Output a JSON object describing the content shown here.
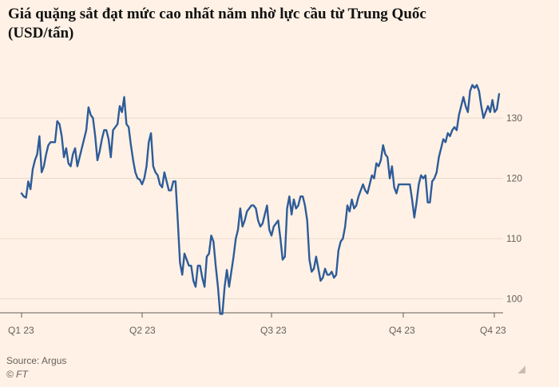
{
  "chart_data": {
    "type": "line",
    "title": "Giá quặng sắt đạt mức cao nhất năm nhờ lực cầu từ Trung Quốc (USD/tấn)",
    "source": "Source: Argus",
    "credit": "© FT",
    "x_ticks": [
      "Q1 23",
      "Q2 23",
      "Q3 23",
      "Q4 23",
      "Q4 23"
    ],
    "y_ticks": [
      100,
      110,
      120,
      130
    ],
    "ylim": [
      97,
      137
    ],
    "grid": true,
    "line_color": "#2e5c99",
    "series": [
      {
        "values": [
          117.5,
          117.0,
          116.8,
          119.5,
          118.2,
          121.5,
          123.0,
          124.0,
          127.0,
          121.0,
          122.0,
          124.0,
          125.5,
          126.0,
          126.0,
          126.0,
          129.5,
          129.0,
          127.0,
          123.5,
          125.0,
          122.5,
          122.0,
          124.0,
          125.0,
          122.0,
          123.5,
          125.0,
          126.5,
          128.0,
          131.8,
          130.5,
          130.0,
          127.0,
          123.0,
          124.5,
          126.5,
          128.0,
          128.0,
          126.5,
          123.5,
          128.0,
          128.5,
          129.0,
          132.0,
          131.0,
          133.5,
          129.0,
          128.5,
          125.5,
          123.0,
          121.0,
          120.0,
          119.8,
          119.0,
          120.0,
          122.0,
          126.0,
          127.5,
          122.0,
          121.0,
          120.5,
          119.0,
          118.5,
          121.0,
          119.5,
          118.0,
          118.0,
          119.5,
          119.5,
          113.0,
          106.0,
          104.0,
          107.5,
          106.5,
          105.5,
          105.5,
          103.0,
          102.0,
          105.5,
          105.5,
          103.5,
          102.0,
          107.0,
          107.5,
          110.5,
          109.5,
          105.5,
          102.0,
          97.5,
          97.5,
          102.0,
          104.8,
          102.0,
          104.5,
          107.0,
          110.0,
          111.5,
          115.0,
          112.0,
          113.0,
          114.5,
          115.0,
          115.5,
          115.5,
          115.0,
          113.0,
          112.0,
          112.5,
          114.0,
          115.5,
          111.5,
          110.5,
          112.0,
          112.5,
          113.0,
          110.0,
          106.5,
          107.0,
          115.0,
          117.0,
          114.0,
          116.5,
          115.0,
          115.5,
          117.0,
          117.0,
          115.5,
          113.0,
          106.5,
          104.5,
          105.0,
          107.0,
          105.0,
          103.0,
          103.5,
          105.0,
          104.0,
          104.0,
          104.5,
          103.5,
          104.0,
          108.0,
          109.5,
          110.0,
          112.0,
          115.5,
          114.5,
          116.5,
          115.0,
          115.5,
          117.0,
          118.0,
          119.0,
          118.0,
          117.5,
          119.0,
          120.5,
          120.0,
          122.5,
          122.0,
          123.0,
          125.5,
          124.0,
          123.5,
          120.0,
          122.0,
          118.5,
          117.5,
          119.0,
          119.0,
          119.0,
          119.0,
          119.0,
          119.0,
          116.5,
          113.5,
          116.0,
          119.0,
          120.5,
          120.0,
          120.5,
          116.0,
          116.0,
          119.5,
          120.0,
          121.0,
          123.5,
          125.0,
          126.5,
          126.0,
          127.5,
          127.0,
          128.0,
          128.5,
          128.0,
          130.5,
          132.0,
          133.5,
          132.0,
          131.0,
          134.5,
          135.5,
          135.0,
          135.5,
          134.5,
          132.0,
          130.0,
          131.0,
          132.0,
          131.0,
          133.0,
          131.0,
          131.5,
          134.0
        ]
      }
    ]
  }
}
